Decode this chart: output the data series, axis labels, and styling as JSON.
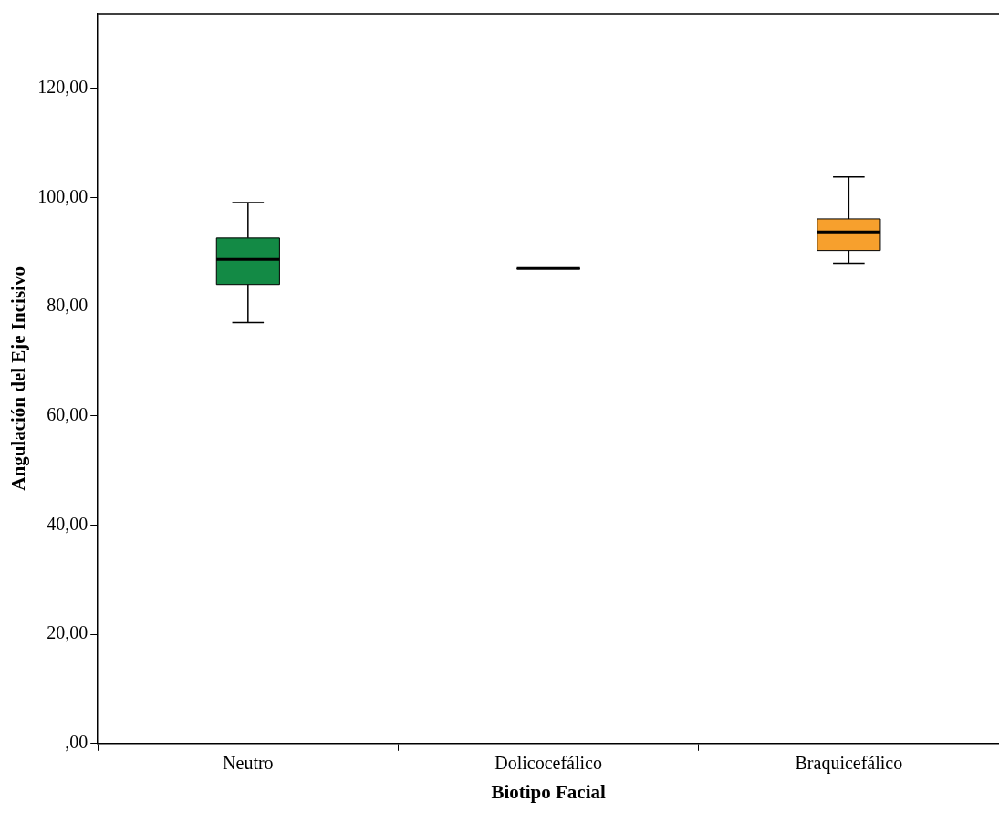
{
  "chart_data": {
    "type": "box",
    "xlabel": "Biotipo Facial",
    "ylabel": "Angulación del Eje Incisivo",
    "categories": [
      "Neutro",
      "Dolicocefálico",
      "Braquicefálico"
    ],
    "colors": [
      "#138a45",
      "#000000",
      "#f7a02d"
    ],
    "boxes": [
      {
        "low": 77.1,
        "q1": 84.1,
        "median": 88.7,
        "q3": 92.6,
        "high": 99.1
      },
      {
        "low": 87,
        "q1": 87,
        "median": 87,
        "q3": 87,
        "high": 87
      },
      {
        "low": 88,
        "q1": 90.3,
        "median": 93.7,
        "q3": 96.1,
        "high": 103.8
      }
    ],
    "ylim": [
      0,
      133.7
    ],
    "yticks": [
      {
        "value": 0,
        "label": ",00"
      },
      {
        "value": 20,
        "label": "20,00"
      },
      {
        "value": 40,
        "label": "40,00"
      },
      {
        "value": 60,
        "label": "60,00"
      },
      {
        "value": 80,
        "label": "80,00"
      },
      {
        "value": 100,
        "label": "100,00"
      },
      {
        "value": 120,
        "label": "120,00"
      }
    ],
    "grid": false
  }
}
